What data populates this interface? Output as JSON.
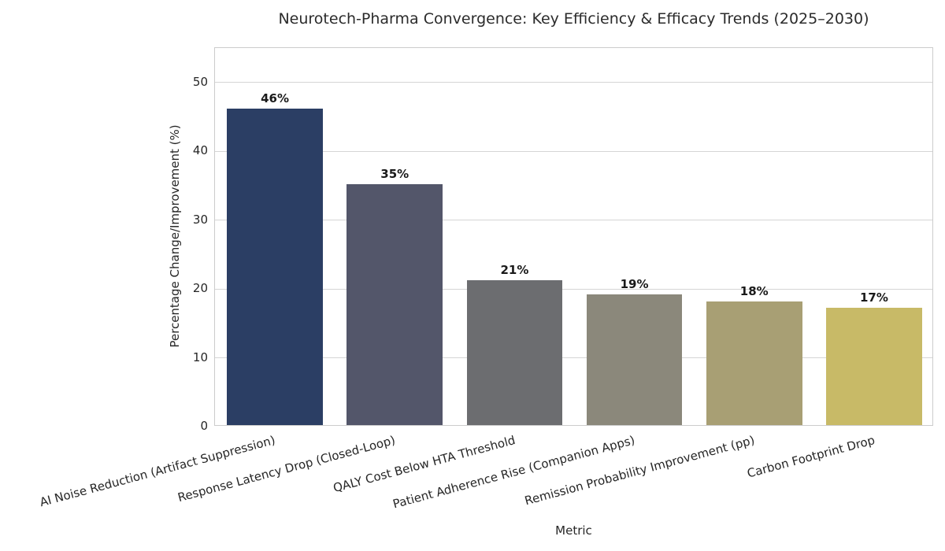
{
  "chart_data": {
    "type": "bar",
    "title": "Neurotech-Pharma Convergence: Key Efficiency & Efficacy Trends (2025–2030)",
    "xlabel": "Metric",
    "ylabel": "Percentage Change/Improvement (%)",
    "categories": [
      "AI Noise Reduction (Artifact Suppression)",
      "Response Latency Drop (Closed-Loop)",
      "QALY Cost Below HTA Threshold",
      "Patient Adherence Rise (Companion Apps)",
      "Remission Probability Improvement (pp)",
      "Carbon Footprint Drop"
    ],
    "values": [
      46,
      35,
      21,
      19,
      18,
      17
    ],
    "value_labels": [
      "46%",
      "35%",
      "21%",
      "19%",
      "18%",
      "17%"
    ],
    "bar_colors": [
      "#2b3e64",
      "#53566a",
      "#6c6d70",
      "#8b887b",
      "#a89f74",
      "#c8ba67"
    ],
    "ylim": [
      0,
      55
    ],
    "yticks": [
      0,
      10,
      20,
      30,
      40,
      50
    ],
    "grid": "horizontal",
    "legend": "none",
    "bar_width_fraction": 0.8,
    "xtick_rotation_deg": 15,
    "styling": {
      "background_color": "#ffffff",
      "grid_color": "#d5d5d5",
      "spine_color": "#cccccc",
      "text_color": "#262626",
      "title_color": "#2b2b2b",
      "value_label_color": "#1a1a1a"
    }
  }
}
